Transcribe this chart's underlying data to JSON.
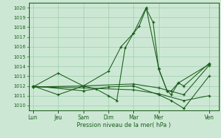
{
  "bg_color": "#cce8d4",
  "grid_color": "#99ccaa",
  "line_color": "#1a5c1a",
  "ylabel": "Pression niveau de la mer( hPa )",
  "ylim": [
    1009.5,
    1020.5
  ],
  "yticks": [
    1010,
    1011,
    1012,
    1013,
    1014,
    1015,
    1016,
    1017,
    1018,
    1019,
    1020
  ],
  "xtick_labels": [
    "Lun",
    "Jeu",
    "Sam",
    "Dim",
    "Mar",
    "Mer",
    "Ven"
  ],
  "xtick_positions": [
    0,
    18,
    36,
    54,
    72,
    90,
    126
  ],
  "xlim": [
    -3,
    133
  ],
  "lines": [
    [
      [
        0,
        1011.9
      ],
      [
        18,
        1013.3
      ],
      [
        36,
        1012.0
      ],
      [
        45,
        1011.7
      ],
      [
        54,
        1011.0
      ],
      [
        60,
        1010.5
      ],
      [
        66,
        1015.9
      ],
      [
        72,
        1017.4
      ],
      [
        76,
        1018.1
      ],
      [
        81,
        1019.9
      ],
      [
        86,
        1018.5
      ],
      [
        90,
        1013.7
      ],
      [
        96,
        1011.5
      ],
      [
        99,
        1011.1
      ],
      [
        104,
        1012.3
      ],
      [
        108,
        1012.0
      ],
      [
        126,
        1014.3
      ]
    ],
    [
      [
        0,
        1012.0
      ],
      [
        18,
        1011.1
      ],
      [
        36,
        1012.0
      ],
      [
        54,
        1013.5
      ],
      [
        63,
        1016.0
      ],
      [
        72,
        1017.4
      ],
      [
        81,
        1020.0
      ],
      [
        90,
        1013.8
      ],
      [
        96,
        1011.5
      ],
      [
        99,
        1011.5
      ],
      [
        104,
        1012.3
      ],
      [
        126,
        1014.2
      ]
    ],
    [
      [
        0,
        1012.0
      ],
      [
        36,
        1011.5
      ],
      [
        54,
        1011.9
      ],
      [
        72,
        1012.0
      ],
      [
        90,
        1011.1
      ],
      [
        99,
        1010.5
      ],
      [
        108,
        1009.7
      ],
      [
        126,
        1013.0
      ]
    ],
    [
      [
        0,
        1011.9
      ],
      [
        36,
        1012.0
      ],
      [
        72,
        1012.2
      ],
      [
        90,
        1011.8
      ],
      [
        108,
        1011.1
      ],
      [
        126,
        1014.1
      ]
    ],
    [
      [
        0,
        1011.9
      ],
      [
        36,
        1011.8
      ],
      [
        72,
        1011.6
      ],
      [
        90,
        1011.2
      ],
      [
        108,
        1010.5
      ],
      [
        126,
        1011.0
      ]
    ]
  ]
}
